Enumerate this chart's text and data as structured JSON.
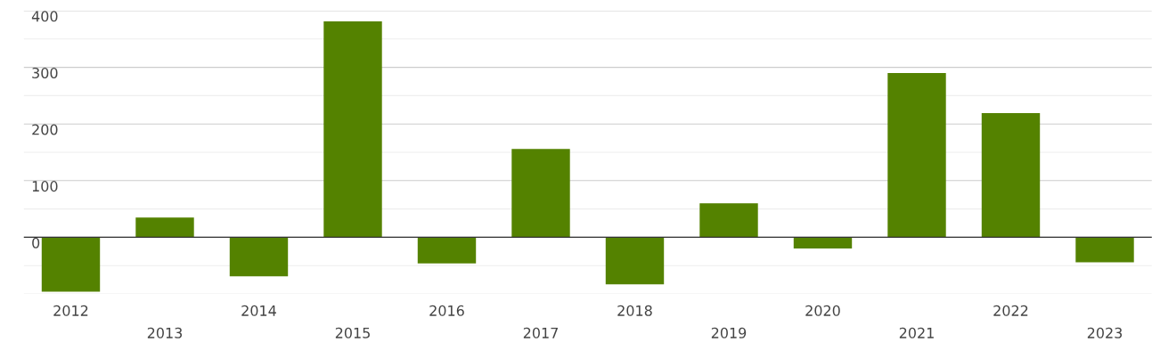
{
  "chart_data": {
    "type": "bar",
    "categories": [
      "2012",
      "2013",
      "2014",
      "2015",
      "2016",
      "2017",
      "2018",
      "2019",
      "2020",
      "2021",
      "2022",
      "2023"
    ],
    "values": [
      -96,
      35,
      -69,
      381,
      -46,
      156,
      -83,
      60,
      -20,
      290,
      219,
      -44
    ],
    "color": "#548200",
    "ylim": [
      -100,
      400
    ],
    "yticks": [
      {
        "value": -100,
        "label": null
      },
      {
        "value": -50,
        "label": null
      },
      0,
      {
        "value": 50,
        "label": null
      },
      100,
      {
        "value": 150,
        "label": null
      },
      200,
      {
        "value": 250,
        "label": null
      },
      300,
      {
        "value": 350,
        "label": null
      },
      400
    ],
    "grid": "y",
    "ref_lines": [
      {
        "axis": "y",
        "value": 0,
        "label": null,
        "color": "#333333"
      }
    ]
  }
}
